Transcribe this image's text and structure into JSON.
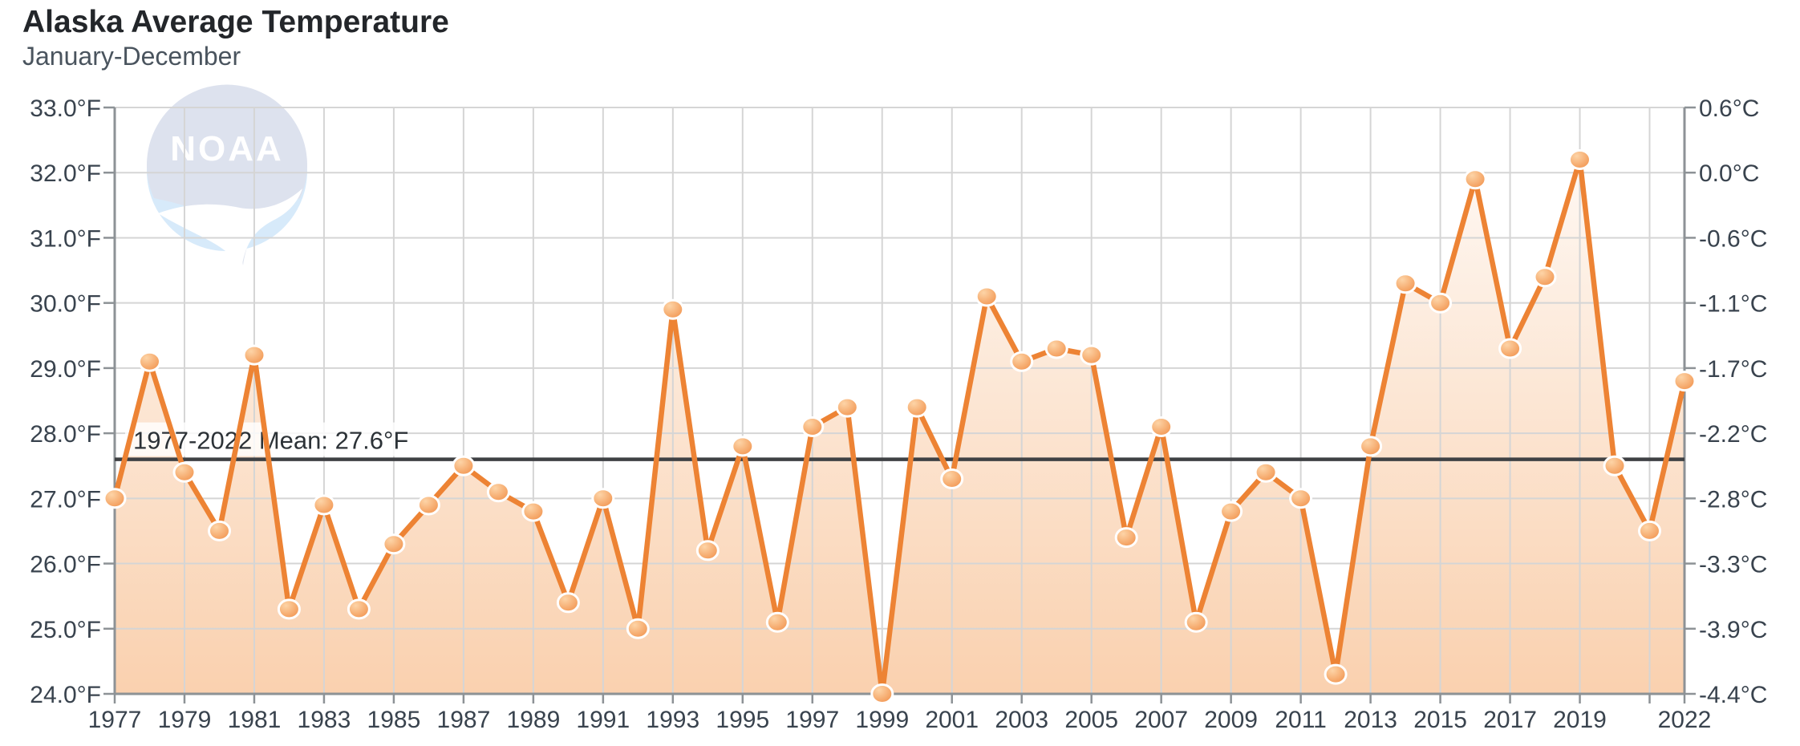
{
  "header": {
    "title": "Alaska Average Temperature",
    "subtitle": "January-December"
  },
  "watermark": {
    "label": "NOAA"
  },
  "chart_data": {
    "type": "line",
    "title": "Alaska Average Temperature",
    "subtitle": "January-December",
    "x": [
      1977,
      1978,
      1979,
      1980,
      1981,
      1982,
      1983,
      1984,
      1985,
      1986,
      1987,
      1988,
      1989,
      1990,
      1991,
      1992,
      1993,
      1994,
      1995,
      1996,
      1997,
      1998,
      1999,
      2000,
      2001,
      2002,
      2003,
      2004,
      2005,
      2006,
      2007,
      2008,
      2009,
      2010,
      2011,
      2012,
      2013,
      2014,
      2015,
      2016,
      2017,
      2018,
      2019,
      2020,
      2021,
      2022
    ],
    "values": [
      27.0,
      29.1,
      27.4,
      26.5,
      29.2,
      25.3,
      26.9,
      25.3,
      26.3,
      26.9,
      27.5,
      27.1,
      26.8,
      25.4,
      27.0,
      25.0,
      29.9,
      26.2,
      27.8,
      25.1,
      28.1,
      28.4,
      24.0,
      28.4,
      27.3,
      30.1,
      29.1,
      29.3,
      29.2,
      26.4,
      28.1,
      25.1,
      26.8,
      27.4,
      27.0,
      24.3,
      27.8,
      30.3,
      30.0,
      31.9,
      29.3,
      30.4,
      32.2,
      27.5,
      26.5,
      28.8
    ],
    "xlim": [
      1977,
      2022
    ],
    "ylim_f": [
      24.0,
      33.0
    ],
    "mean": {
      "value": 27.6,
      "label": "1977-2022 Mean: 27.6°F"
    },
    "y_axis_left": {
      "unit": "°F",
      "tick_values": [
        33,
        32,
        31,
        30,
        29,
        28,
        27,
        26,
        25,
        24
      ],
      "tick_labels": [
        "33.0°F",
        "32.0°F",
        "31.0°F",
        "30.0°F",
        "29.0°F",
        "28.0°F",
        "27.0°F",
        "26.0°F",
        "25.0°F",
        "24.0°F"
      ]
    },
    "y_axis_right": {
      "unit": "°C",
      "tick_labels": [
        "0.6°C",
        "0.0°C",
        "-0.6°C",
        "-1.1°C",
        "-1.7°C",
        "-2.2°C",
        "-2.8°C",
        "-3.3°C",
        "-3.9°C",
        "-4.4°C"
      ]
    },
    "x_axis": {
      "tick_labels": [
        "1977",
        "1979",
        "1981",
        "1983",
        "1985",
        "1987",
        "1989",
        "1991",
        "1993",
        "1995",
        "1997",
        "1999",
        "2001",
        "2003",
        "2005",
        "2007",
        "2009",
        "2011",
        "2013",
        "2015",
        "2017",
        "2019",
        "2022"
      ],
      "gridline_years": [
        1979,
        1981,
        1983,
        1985,
        1987,
        1989,
        1991,
        1993,
        1995,
        1997,
        1999,
        2001,
        2003,
        2005,
        2007,
        2009,
        2011,
        2013,
        2015,
        2017,
        2019,
        2021
      ]
    },
    "legend": "none",
    "grid": true,
    "colors": {
      "line": "#ed8334",
      "area_top": "rgba(243,152,77,0.07)",
      "area_bottom": "rgba(243,152,77,0.45)",
      "marker_center": "#fdd4a7",
      "marker_edge": "#f19049",
      "marker_ring": "#ffffff",
      "mean_line": "#3f4144",
      "mean_text": "#2c3237",
      "grid_line": "#d5d5d5",
      "spine": "#8d9296",
      "axis_text": "#39434e",
      "title_text": "#23262a",
      "subtitle_text": "#4a545e",
      "logo_dome": "#dde2ee",
      "logo_sea": "#d7eafa",
      "logo_white": "#ffffff"
    }
  }
}
